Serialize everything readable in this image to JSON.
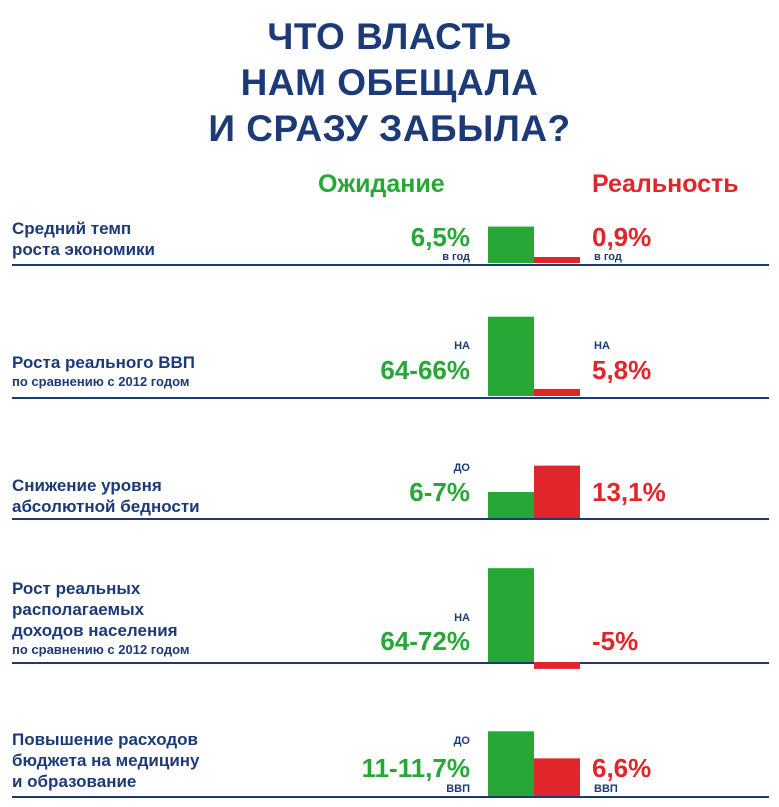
{
  "title": {
    "line1": "ЧТО ВЛАСТЬ",
    "line2": "НАМ ОБЕЩАЛА",
    "line3": "И СРАЗУ ЗАБЫЛА?"
  },
  "columns": {
    "expectation": "Ожидание",
    "reality": "Реальность"
  },
  "colors": {
    "title": "#1d3a78",
    "expectation": "#27a836",
    "reality": "#e0262b"
  },
  "rows": [
    {
      "label": [
        "Средний темп",
        "роста экономики"
      ],
      "sub": "",
      "exp_prefix": "",
      "exp_text": "6,5%",
      "exp_suffix": "в год",
      "real_prefix": "",
      "real_text": "0,9%",
      "real_suffix": "в год"
    },
    {
      "label": [
        "Роста реального ВВП"
      ],
      "sub": "по сравнению с 2012 годом",
      "exp_prefix": "НА",
      "exp_text": "64-66%",
      "exp_suffix": "",
      "real_prefix": "НА",
      "real_text": "5,8%",
      "real_suffix": ""
    },
    {
      "label": [
        "Снижение уровня",
        "абсолютной бедности"
      ],
      "sub": "",
      "exp_prefix": "ДО",
      "exp_text": "6-7%",
      "exp_suffix": "",
      "real_prefix": "",
      "real_text": "13,1%",
      "real_suffix": ""
    },
    {
      "label": [
        "Рост реальных",
        "располагаемых",
        "доходов населения"
      ],
      "sub": "по сравнению с 2012 годом",
      "exp_prefix": "НА",
      "exp_text": "64-72%",
      "exp_suffix": "",
      "real_prefix": "",
      "real_text": "-5%",
      "real_suffix": ""
    },
    {
      "label": [
        "Повышение расходов",
        "бюджета на медицину",
        "и образование"
      ],
      "sub": "",
      "exp_prefix": "ДО",
      "exp_text": "11-11,7%",
      "exp_suffix": "ВВП",
      "real_prefix": "",
      "real_text": "6,6%",
      "real_suffix": "ВВП"
    }
  ],
  "chart_data": {
    "type": "bar",
    "categories": [
      "Средний темп роста экономики",
      "Роста реального ВВП",
      "Снижение уровня абсолютной бедности",
      "Рост реальных располагаемых доходов населения",
      "Повышение расходов бюджета на медицину и образование"
    ],
    "series": [
      {
        "name": "Ожидание",
        "values": [
          6.5,
          65,
          6.5,
          68,
          11.35
        ]
      },
      {
        "name": "Реальность",
        "values": [
          0.9,
          5.8,
          13.1,
          -5,
          6.6
        ]
      }
    ]
  }
}
